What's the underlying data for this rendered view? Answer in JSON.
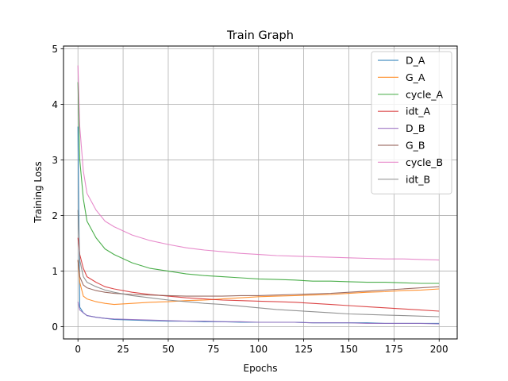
{
  "chart_data": {
    "type": "line",
    "title": "Train Graph",
    "xlabel": "Epochs",
    "ylabel": "Training Loss",
    "xlim": [
      -8,
      210
    ],
    "ylim": [
      -0.22,
      5.05
    ],
    "xticks": [
      0,
      25,
      50,
      75,
      100,
      125,
      150,
      175,
      200
    ],
    "yticks": [
      0,
      1,
      2,
      3,
      4,
      5
    ],
    "grid": true,
    "legend_position": "top-right",
    "series": [
      {
        "name": "D_A",
        "color": "#1f77b4",
        "x": [
          0,
          1,
          3,
          5,
          10,
          15,
          20,
          30,
          40,
          50,
          60,
          70,
          80,
          90,
          100,
          110,
          120,
          130,
          140,
          150,
          160,
          170,
          180,
          190,
          200
        ],
        "y": [
          3.6,
          0.35,
          0.25,
          0.2,
          0.17,
          0.15,
          0.13,
          0.12,
          0.11,
          0.1,
          0.1,
          0.09,
          0.09,
          0.08,
          0.08,
          0.08,
          0.08,
          0.07,
          0.07,
          0.07,
          0.07,
          0.06,
          0.06,
          0.06,
          0.06
        ]
      },
      {
        "name": "G_A",
        "color": "#ff7f0e",
        "x": [
          0,
          1,
          3,
          5,
          10,
          15,
          20,
          30,
          40,
          50,
          60,
          70,
          80,
          90,
          100,
          110,
          120,
          130,
          140,
          150,
          160,
          170,
          180,
          190,
          200
        ],
        "y": [
          1.2,
          0.8,
          0.55,
          0.5,
          0.45,
          0.42,
          0.4,
          0.42,
          0.44,
          0.45,
          0.47,
          0.48,
          0.5,
          0.52,
          0.54,
          0.55,
          0.56,
          0.57,
          0.58,
          0.6,
          0.62,
          0.63,
          0.65,
          0.66,
          0.68
        ]
      },
      {
        "name": "cycle_A",
        "color": "#2ca02c",
        "x": [
          0,
          1,
          3,
          5,
          10,
          15,
          20,
          30,
          40,
          50,
          60,
          70,
          80,
          90,
          100,
          110,
          120,
          130,
          140,
          150,
          160,
          170,
          180,
          190,
          200
        ],
        "y": [
          4.4,
          3.0,
          2.3,
          1.9,
          1.6,
          1.4,
          1.3,
          1.15,
          1.05,
          1.0,
          0.95,
          0.92,
          0.9,
          0.88,
          0.86,
          0.85,
          0.84,
          0.82,
          0.82,
          0.81,
          0.8,
          0.8,
          0.79,
          0.78,
          0.78
        ]
      },
      {
        "name": "idt_A",
        "color": "#d62728",
        "x": [
          0,
          1,
          3,
          5,
          10,
          15,
          20,
          30,
          40,
          50,
          60,
          70,
          80,
          90,
          100,
          110,
          120,
          130,
          140,
          150,
          160,
          170,
          180,
          190,
          200
        ],
        "y": [
          1.6,
          1.3,
          1.05,
          0.9,
          0.8,
          0.72,
          0.68,
          0.62,
          0.58,
          0.55,
          0.52,
          0.5,
          0.48,
          0.47,
          0.46,
          0.45,
          0.44,
          0.42,
          0.4,
          0.38,
          0.36,
          0.34,
          0.32,
          0.3,
          0.28
        ]
      },
      {
        "name": "D_B",
        "color": "#9467bd",
        "x": [
          0,
          1,
          3,
          5,
          10,
          15,
          20,
          30,
          40,
          50,
          60,
          70,
          80,
          90,
          100,
          110,
          120,
          130,
          140,
          150,
          160,
          170,
          180,
          190,
          200
        ],
        "y": [
          0.45,
          0.3,
          0.25,
          0.2,
          0.17,
          0.15,
          0.14,
          0.13,
          0.12,
          0.11,
          0.1,
          0.1,
          0.09,
          0.09,
          0.08,
          0.08,
          0.08,
          0.07,
          0.07,
          0.07,
          0.06,
          0.06,
          0.06,
          0.06,
          0.05
        ]
      },
      {
        "name": "G_B",
        "color": "#8c564b",
        "x": [
          0,
          1,
          3,
          5,
          10,
          15,
          20,
          30,
          40,
          50,
          60,
          70,
          80,
          90,
          100,
          110,
          120,
          130,
          140,
          150,
          160,
          170,
          180,
          190,
          200
        ],
        "y": [
          1.2,
          0.9,
          0.75,
          0.7,
          0.65,
          0.62,
          0.6,
          0.58,
          0.57,
          0.56,
          0.55,
          0.55,
          0.55,
          0.56,
          0.56,
          0.57,
          0.58,
          0.59,
          0.6,
          0.62,
          0.64,
          0.66,
          0.68,
          0.7,
          0.72
        ]
      },
      {
        "name": "cycle_B",
        "color": "#e377c2",
        "x": [
          0,
          1,
          3,
          5,
          10,
          15,
          20,
          30,
          40,
          50,
          60,
          70,
          80,
          90,
          100,
          110,
          120,
          130,
          140,
          150,
          160,
          170,
          180,
          190,
          200
        ],
        "y": [
          4.7,
          3.6,
          2.8,
          2.4,
          2.1,
          1.9,
          1.8,
          1.65,
          1.55,
          1.48,
          1.42,
          1.38,
          1.35,
          1.32,
          1.3,
          1.28,
          1.27,
          1.26,
          1.25,
          1.24,
          1.23,
          1.22,
          1.22,
          1.21,
          1.2
        ]
      },
      {
        "name": "idt_B",
        "color": "#7f7f7f",
        "x": [
          0,
          1,
          3,
          5,
          10,
          15,
          20,
          30,
          40,
          50,
          60,
          70,
          80,
          90,
          100,
          110,
          120,
          130,
          140,
          150,
          160,
          170,
          180,
          190,
          200
        ],
        "y": [
          2.1,
          1.2,
          0.9,
          0.8,
          0.72,
          0.66,
          0.62,
          0.56,
          0.52,
          0.48,
          0.45,
          0.42,
          0.4,
          0.37,
          0.34,
          0.31,
          0.29,
          0.27,
          0.25,
          0.23,
          0.22,
          0.21,
          0.2,
          0.19,
          0.18
        ]
      }
    ]
  }
}
